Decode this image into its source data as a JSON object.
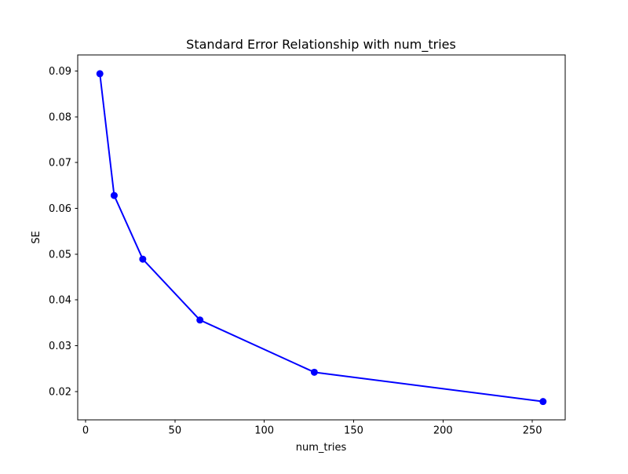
{
  "figure": {
    "background": "#ffffff",
    "text_color": "#000000",
    "spine_color": "#000000"
  },
  "chart_data": {
    "type": "line",
    "title": "Standard Error Relationship with num_tries",
    "xlabel": "num_tries",
    "ylabel": "SE",
    "series": [
      {
        "name": "SE",
        "x": [
          8,
          16,
          32,
          64,
          128,
          256
        ],
        "y": [
          0.0894,
          0.0628,
          0.0489,
          0.0356,
          0.0242,
          0.0178
        ],
        "line_color": "#0000ff",
        "marker": "o",
        "marker_color": "#0000ff"
      }
    ],
    "xlim": [
      -4.4,
      268.4
    ],
    "ylim": [
      0.0138,
      0.0935
    ],
    "xticks": [
      0,
      50,
      100,
      150,
      200,
      250
    ],
    "yticks": [
      0.02,
      0.03,
      0.04,
      0.05,
      0.06,
      0.07,
      0.08,
      0.09
    ],
    "ytick_decimals": 2,
    "grid": false,
    "legend_position": "none"
  }
}
